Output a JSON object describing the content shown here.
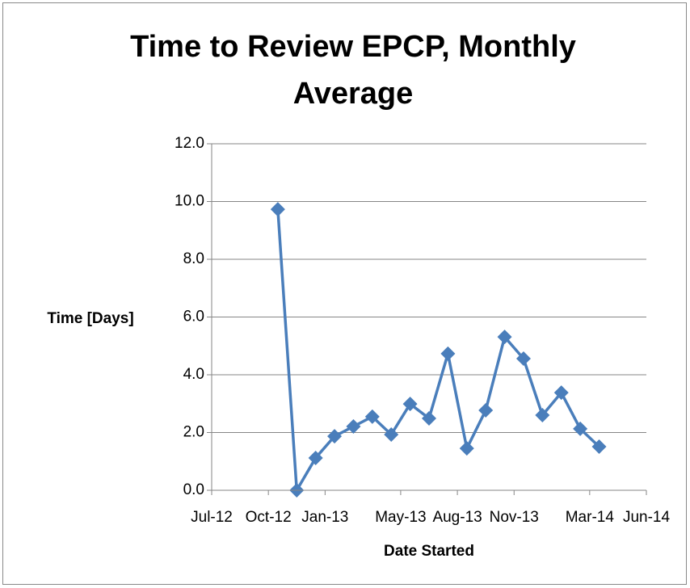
{
  "chart_data": {
    "type": "line",
    "title": [
      "Time to Review EPCP, Monthly",
      "Average"
    ],
    "x_label": "Date Started",
    "y_label": "Time [Days]",
    "x": [
      "2012-10",
      "2012-11",
      "2012-12",
      "2013-01",
      "2013-02",
      "2013-03",
      "2013-04",
      "2013-05",
      "2013-06",
      "2013-07",
      "2013-08",
      "2013-09",
      "2013-10",
      "2013-11",
      "2013-12",
      "2014-01",
      "2014-02",
      "2014-03"
    ],
    "series": [
      {
        "name": "Time [Days]",
        "color": "#4a7ebb",
        "values": [
          9.73,
          0.0,
          1.12,
          1.87,
          2.21,
          2.55,
          1.93,
          2.99,
          2.49,
          4.73,
          1.45,
          2.77,
          5.31,
          4.56,
          2.6,
          3.38,
          2.13,
          1.51
        ]
      }
    ],
    "xlim": [
      "2012-07",
      "2014-06"
    ],
    "xticks": [
      {
        "value": "2012-07",
        "label": "Jul-12"
      },
      {
        "value": "2012-10",
        "label": "Oct-12"
      },
      {
        "value": "2013-01",
        "label": "Jan-13"
      },
      {
        "value": "2013-05",
        "label": "May-13"
      },
      {
        "value": "2013-08",
        "label": "Aug-13"
      },
      {
        "value": "2013-11",
        "label": "Nov-13"
      },
      {
        "value": "2014-03",
        "label": "Mar-14"
      },
      {
        "value": "2014-06",
        "label": "Jun-14"
      }
    ],
    "ylim": [
      0,
      12
    ],
    "yticks": [
      {
        "value": 0,
        "label": "0.0"
      },
      {
        "value": 2,
        "label": "2.0"
      },
      {
        "value": 4,
        "label": "4.0"
      },
      {
        "value": 6,
        "label": "6.0"
      },
      {
        "value": 8,
        "label": "8.0"
      },
      {
        "value": 10,
        "label": "10.0"
      },
      {
        "value": 12,
        "label": "12.0"
      }
    ],
    "grid": true,
    "marker": "diamond"
  }
}
